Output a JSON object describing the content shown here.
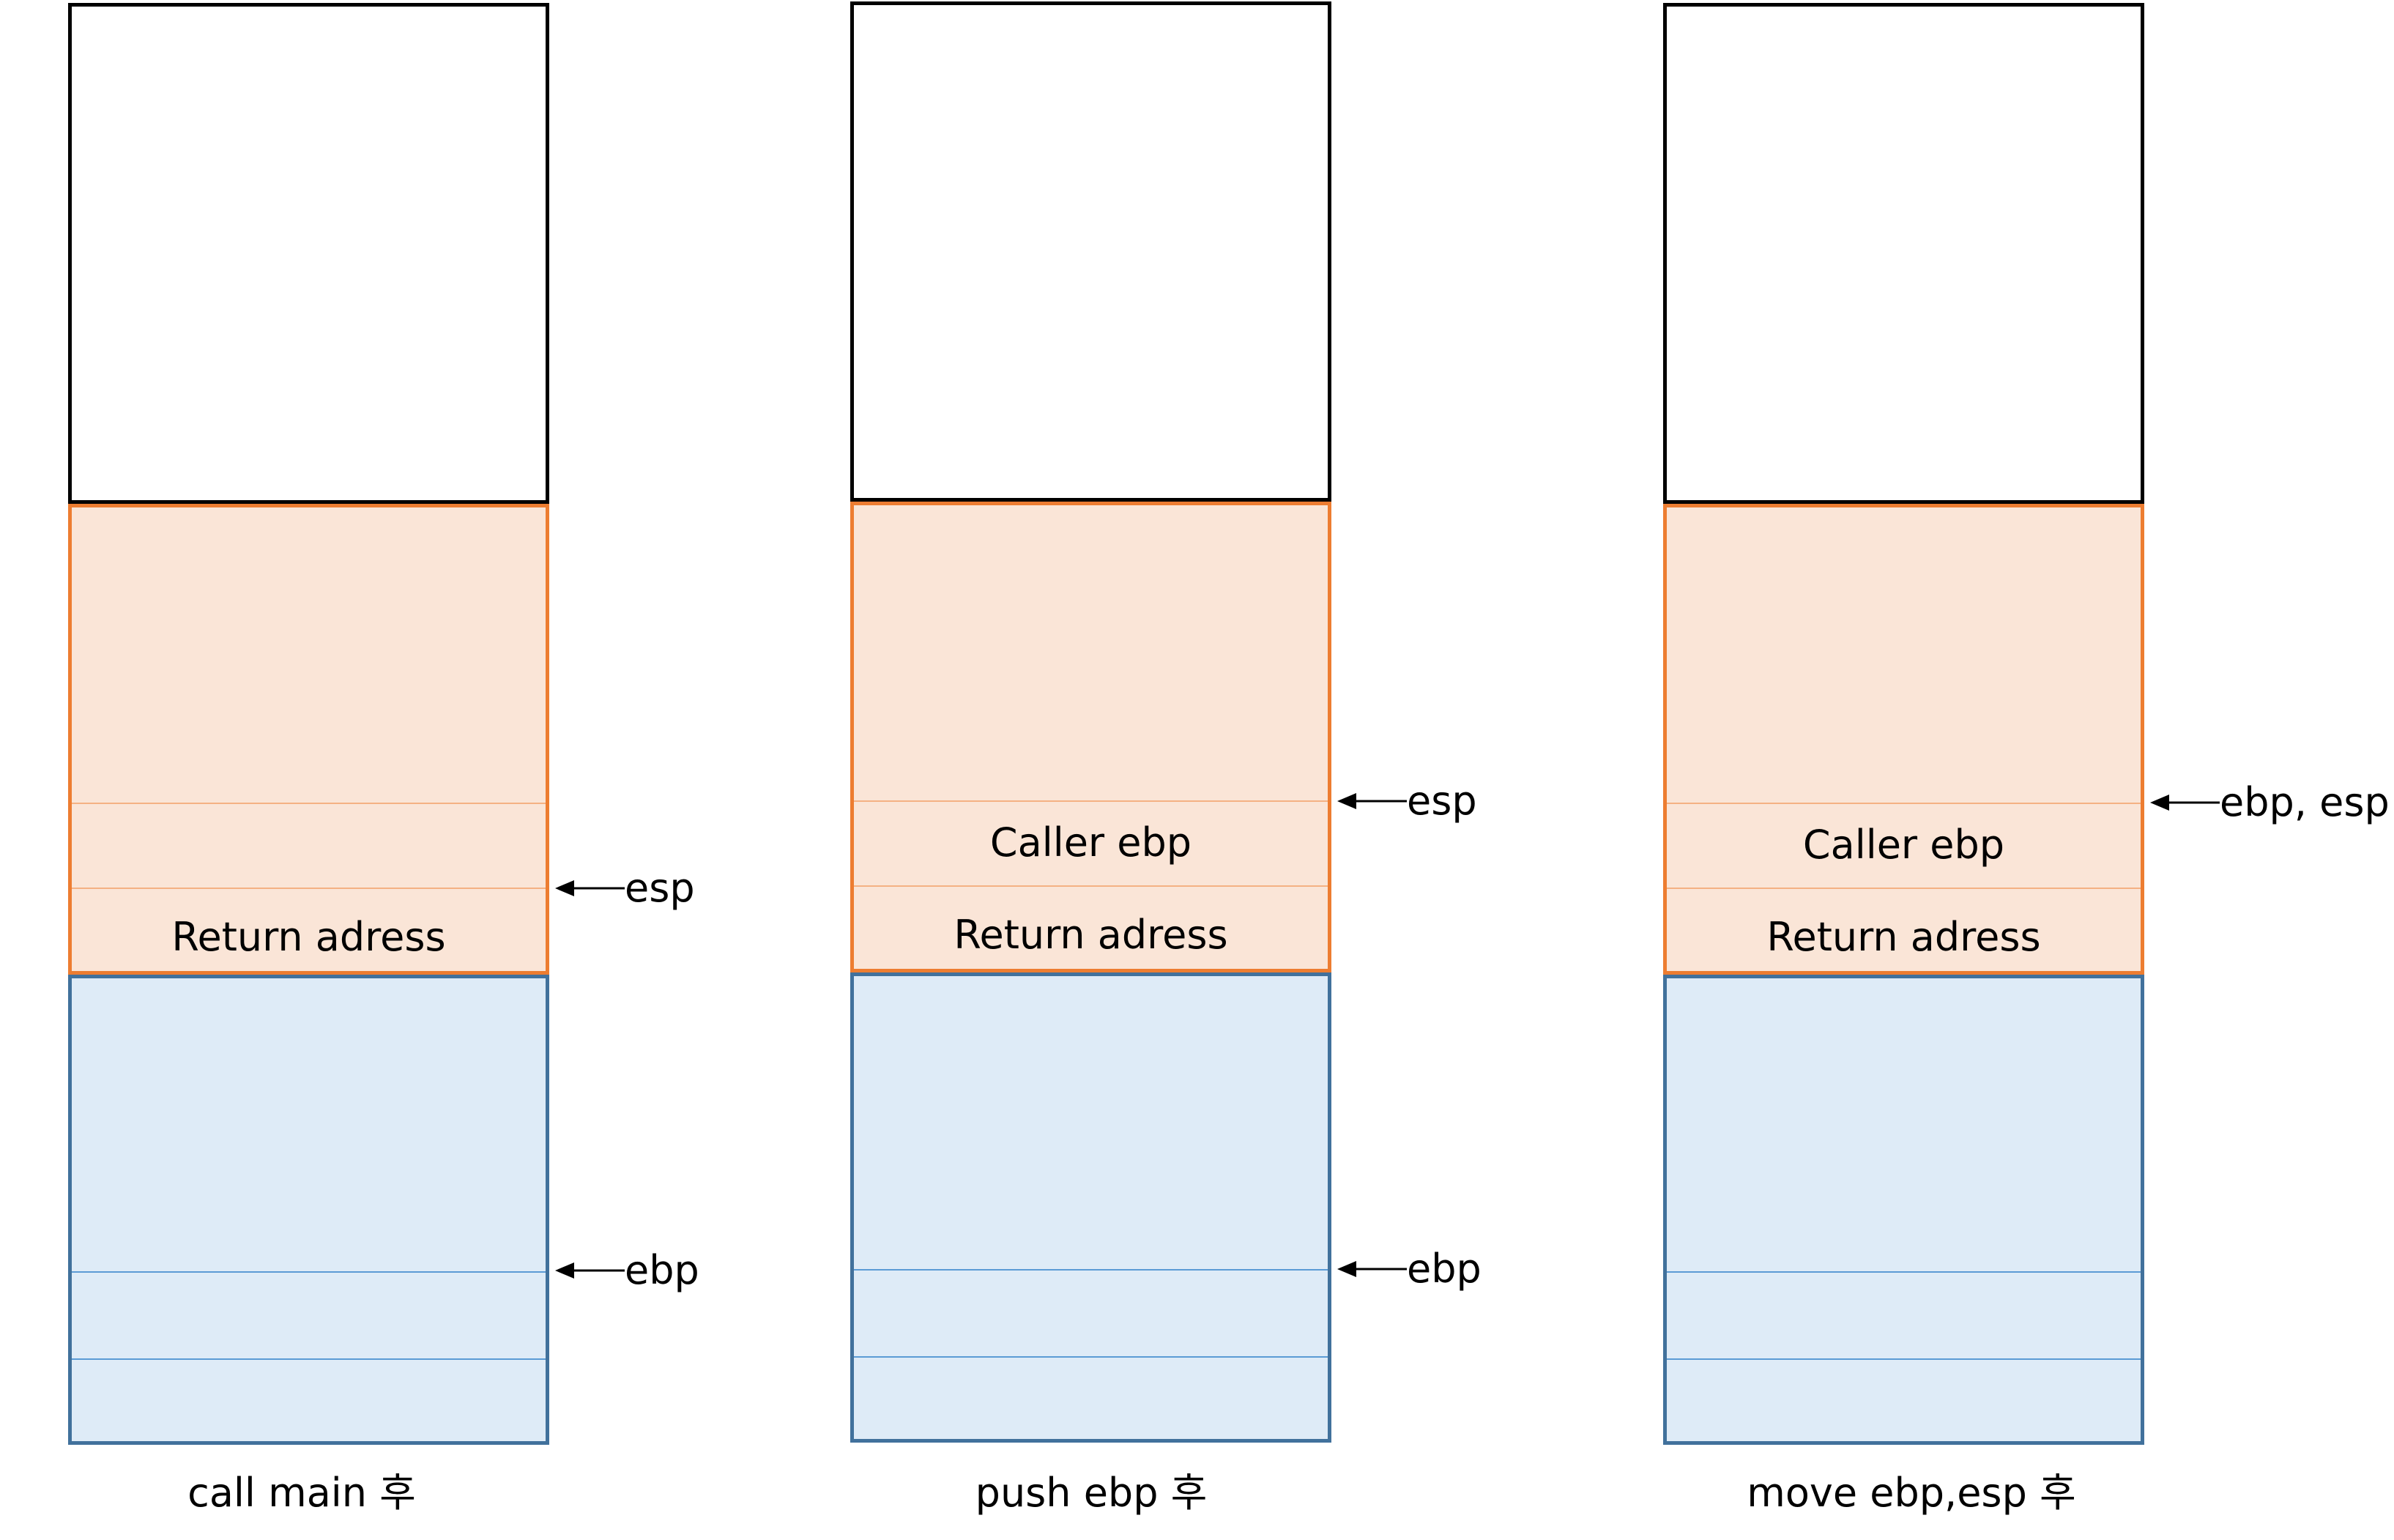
{
  "diagram": {
    "stacks": [
      {
        "caption": "call main 후",
        "cells": {
          "caller_ebp": "",
          "return_address": "Return adress"
        },
        "pointers": [
          {
            "label": "esp"
          },
          {
            "label": "ebp"
          }
        ]
      },
      {
        "caption": "push ebp 후",
        "cells": {
          "caller_ebp": "Caller ebp",
          "return_address": "Return adress"
        },
        "pointers": [
          {
            "label": "esp"
          },
          {
            "label": "ebp"
          }
        ]
      },
      {
        "caption": "move ebp,esp 후",
        "cells": {
          "caller_ebp": "Caller ebp",
          "return_address": "Return adress"
        },
        "pointers": [
          {
            "label": "ebp, esp"
          }
        ]
      }
    ],
    "colors": {
      "main_frame_fill": "#fae5d7",
      "main_frame_border": "#ed7d31",
      "caller_frame_fill": "#deebf7",
      "caller_frame_border": "#41719c",
      "empty_border": "#000000"
    }
  }
}
